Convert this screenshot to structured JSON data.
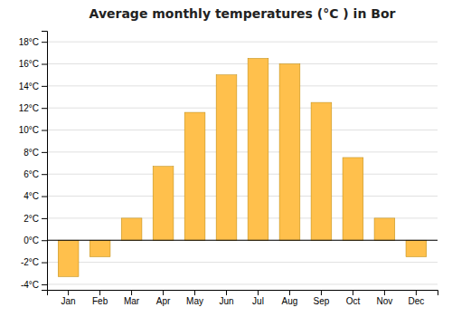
{
  "chart_data": {
    "type": "bar",
    "title": "Average monthly temperatures (°C ) in Bor",
    "categories": [
      "Jan",
      "Feb",
      "Mar",
      "Apr",
      "May",
      "Jun",
      "Jul",
      "Aug",
      "Sep",
      "Oct",
      "Nov",
      "Dec"
    ],
    "values": [
      -3.3,
      -1.5,
      2.0,
      6.7,
      11.6,
      15.0,
      16.5,
      16.0,
      12.5,
      7.5,
      2.0,
      -1.5
    ],
    "color": "#FFC04C",
    "ylim": [
      -4.5,
      19
    ],
    "yticks": [
      {
        "value": -4,
        "label": "-4°C"
      },
      {
        "value": -2,
        "label": "-2°C"
      },
      {
        "value": 0,
        "label": "0°C"
      },
      {
        "value": 2,
        "label": "2°C"
      },
      {
        "value": 4,
        "label": "4°C"
      },
      {
        "value": 6,
        "label": "6°C"
      },
      {
        "value": 8,
        "label": "8°C"
      },
      {
        "value": 10,
        "label": "10°C"
      },
      {
        "value": 12,
        "label": "12°C"
      },
      {
        "value": 14,
        "label": "14°C"
      },
      {
        "value": 16,
        "label": "16°C"
      },
      {
        "value": 18,
        "label": "18°C"
      }
    ],
    "grid": true
  }
}
